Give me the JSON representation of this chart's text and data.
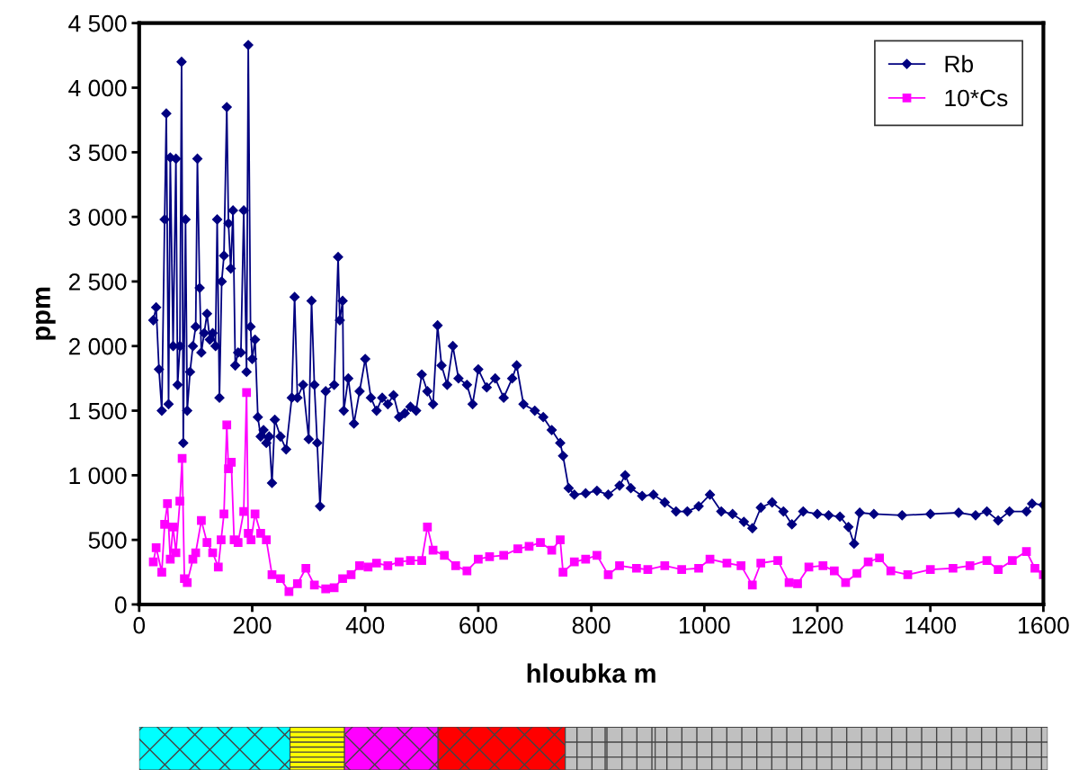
{
  "chart_data": {
    "type": "line",
    "xlabel": "hloubka m",
    "ylabel": "ppm",
    "xlim": [
      0,
      1600
    ],
    "xticks": [
      0,
      200,
      400,
      600,
      800,
      1000,
      1200,
      1400,
      1600
    ],
    "ylim": [
      0,
      4500
    ],
    "yticks": [
      0,
      500,
      {
        "value": 1000,
        "label": "1 000"
      },
      {
        "value": 1500,
        "label": "1 500"
      },
      {
        "value": 2000,
        "label": "2 000"
      },
      {
        "value": 2500,
        "label": "2 500"
      },
      {
        "value": 3000,
        "label": "3 000"
      },
      {
        "value": 3500,
        "label": "3 500"
      },
      {
        "value": 4000,
        "label": "4 000"
      },
      {
        "value": 4500,
        "label": "4 500"
      }
    ],
    "grid": false,
    "legend": "top right",
    "series": [
      {
        "name": "Rb",
        "color": "#000080",
        "marker": "diamond",
        "x": [
          25,
          30,
          35,
          40,
          45,
          48,
          52,
          55,
          60,
          65,
          68,
          72,
          75,
          78,
          82,
          85,
          90,
          95,
          100,
          103,
          107,
          110,
          115,
          120,
          125,
          130,
          135,
          138,
          142,
          146,
          150,
          155,
          158,
          162,
          166,
          170,
          175,
          180,
          185,
          190,
          193,
          197,
          200,
          205,
          210,
          215,
          220,
          225,
          230,
          235,
          240,
          250,
          260,
          270,
          275,
          280,
          290,
          300,
          305,
          310,
          315,
          320,
          330,
          345,
          352,
          355,
          360,
          362,
          370,
          380,
          390,
          400,
          410,
          420,
          430,
          440,
          450,
          460,
          470,
          480,
          490,
          500,
          510,
          520,
          528,
          535,
          545,
          555,
          565,
          580,
          590,
          600,
          615,
          630,
          645,
          660,
          668,
          680,
          700,
          715,
          730,
          745,
          750,
          760,
          770,
          790,
          810,
          830,
          850,
          860,
          870,
          890,
          910,
          930,
          950,
          970,
          990,
          1010,
          1030,
          1050,
          1070,
          1085,
          1100,
          1120,
          1140,
          1155,
          1175,
          1200,
          1220,
          1240,
          1255,
          1265,
          1275,
          1300,
          1350,
          1400,
          1450,
          1480,
          1500,
          1520,
          1540,
          1570,
          1580,
          1600
        ],
        "values": [
          2200,
          2300,
          1820,
          1500,
          2980,
          3800,
          1550,
          3460,
          2000,
          3450,
          1700,
          2000,
          4200,
          1250,
          2980,
          1500,
          1800,
          2000,
          2150,
          3450,
          2450,
          1950,
          2100,
          2250,
          2050,
          2100,
          2000,
          2980,
          1600,
          2500,
          2700,
          3850,
          2950,
          2600,
          3050,
          1850,
          1950,
          1950,
          3050,
          1800,
          4330,
          2150,
          1900,
          2050,
          1450,
          1300,
          1350,
          1250,
          1300,
          940,
          1430,
          1300,
          1200,
          1600,
          2380,
          1600,
          1700,
          1280,
          2350,
          1700,
          1250,
          760,
          1650,
          1700,
          2690,
          2200,
          2350,
          1500,
          1750,
          1400,
          1650,
          1900,
          1600,
          1500,
          1600,
          1550,
          1620,
          1450,
          1480,
          1530,
          1500,
          1780,
          1650,
          1550,
          2160,
          1850,
          1700,
          2000,
          1750,
          1700,
          1550,
          1820,
          1680,
          1750,
          1600,
          1750,
          1850,
          1550,
          1500,
          1450,
          1350,
          1250,
          1150,
          900,
          850,
          860,
          880,
          850,
          920,
          1000,
          900,
          840,
          850,
          790,
          720,
          720,
          760,
          850,
          720,
          700,
          640,
          590,
          750,
          790,
          720,
          620,
          720,
          700,
          690,
          680,
          600,
          470,
          710,
          700,
          690,
          700,
          710,
          690,
          720,
          650,
          720,
          720,
          780,
          770
        ]
      },
      {
        "name": "10*Cs",
        "color": "#ff00ff",
        "marker": "square",
        "x": [
          25,
          30,
          40,
          45,
          50,
          55,
          60,
          65,
          72,
          76,
          80,
          85,
          95,
          100,
          110,
          120,
          130,
          140,
          145,
          150,
          155,
          158,
          163,
          168,
          175,
          185,
          190,
          193,
          198,
          205,
          215,
          225,
          235,
          250,
          265,
          280,
          295,
          310,
          330,
          345,
          360,
          375,
          390,
          405,
          420,
          440,
          460,
          480,
          500,
          510,
          520,
          540,
          560,
          580,
          600,
          620,
          645,
          670,
          690,
          710,
          730,
          745,
          750,
          770,
          790,
          810,
          830,
          850,
          880,
          900,
          930,
          960,
          990,
          1010,
          1040,
          1065,
          1085,
          1100,
          1130,
          1150,
          1165,
          1185,
          1210,
          1230,
          1250,
          1270,
          1290,
          1310,
          1330,
          1360,
          1400,
          1440,
          1470,
          1500,
          1520,
          1545,
          1570,
          1585,
          1600
        ],
        "values": [
          330,
          440,
          250,
          620,
          780,
          350,
          600,
          400,
          800,
          1130,
          200,
          170,
          350,
          400,
          650,
          480,
          400,
          290,
          500,
          700,
          1390,
          1050,
          1100,
          500,
          480,
          720,
          1640,
          550,
          500,
          700,
          550,
          500,
          230,
          200,
          100,
          160,
          280,
          150,
          120,
          130,
          200,
          230,
          300,
          290,
          320,
          300,
          330,
          340,
          340,
          600,
          420,
          380,
          300,
          260,
          350,
          370,
          380,
          430,
          450,
          480,
          420,
          500,
          250,
          330,
          350,
          380,
          230,
          300,
          280,
          270,
          300,
          270,
          280,
          350,
          320,
          300,
          150,
          320,
          340,
          170,
          160,
          290,
          300,
          260,
          170,
          240,
          330,
          360,
          260,
          230,
          270,
          280,
          300,
          340,
          270,
          340,
          410,
          280,
          230
        ]
      }
    ]
  }
}
